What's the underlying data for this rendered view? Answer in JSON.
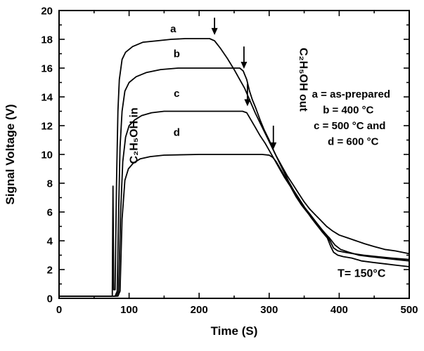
{
  "chart_data": {
    "type": "line",
    "title": "",
    "xlabel": "Time (S)",
    "ylabel": "Signal Voltage (V)",
    "xlim": [
      0,
      500
    ],
    "ylim": [
      0,
      20
    ],
    "x_major_ticks": [
      0,
      100,
      200,
      300,
      400,
      500
    ],
    "x_minor_step": 50,
    "y_major_ticks": [
      0,
      2,
      4,
      6,
      8,
      10,
      12,
      14,
      16,
      18,
      20
    ],
    "y_minor_step": 1,
    "grid": false,
    "legend_position": "inside-right",
    "line_color": "#000000",
    "background_color": "#ffffff",
    "series": [
      {
        "name": "a",
        "description": "as-prepared",
        "points": [
          [
            0,
            0.15
          ],
          [
            76,
            0.15
          ],
          [
            77,
            7.8
          ],
          [
            78,
            0.6
          ],
          [
            80,
            0.6
          ],
          [
            82,
            8
          ],
          [
            84,
            13
          ],
          [
            86,
            15.2
          ],
          [
            90,
            16.6
          ],
          [
            95,
            17.1
          ],
          [
            105,
            17.5
          ],
          [
            120,
            17.8
          ],
          [
            140,
            17.9
          ],
          [
            160,
            18.0
          ],
          [
            180,
            18.05
          ],
          [
            200,
            18.05
          ],
          [
            215,
            18.05
          ],
          [
            222,
            17.9
          ],
          [
            230,
            17.4
          ],
          [
            240,
            16.7
          ],
          [
            250,
            15.9
          ],
          [
            258,
            15.2
          ],
          [
            265,
            14.6
          ],
          [
            272,
            13.8
          ],
          [
            280,
            12.9
          ],
          [
            288,
            12.1
          ],
          [
            295,
            11.4
          ],
          [
            302,
            10.7
          ],
          [
            310,
            9.9
          ],
          [
            318,
            9.2
          ],
          [
            326,
            8.5
          ],
          [
            334,
            7.9
          ],
          [
            342,
            7.3
          ],
          [
            350,
            6.7
          ],
          [
            358,
            6.2
          ],
          [
            366,
            5.8
          ],
          [
            374,
            5.4
          ],
          [
            382,
            5.0
          ],
          [
            390,
            4.7
          ],
          [
            400,
            4.4
          ],
          [
            412,
            4.2
          ],
          [
            424,
            4.0
          ],
          [
            436,
            3.8
          ],
          [
            450,
            3.6
          ],
          [
            465,
            3.4
          ],
          [
            480,
            3.3
          ],
          [
            500,
            3.1
          ]
        ]
      },
      {
        "name": "b",
        "description": "400 °C",
        "points": [
          [
            0,
            0.15
          ],
          [
            80,
            0.15
          ],
          [
            83,
            0.5
          ],
          [
            85,
            6
          ],
          [
            87,
            10.5
          ],
          [
            90,
            13
          ],
          [
            94,
            14.4
          ],
          [
            100,
            15.0
          ],
          [
            110,
            15.4
          ],
          [
            125,
            15.7
          ],
          [
            145,
            15.9
          ],
          [
            170,
            16.0
          ],
          [
            200,
            16.0
          ],
          [
            240,
            16.0
          ],
          [
            258,
            16.0
          ],
          [
            263,
            15.8
          ],
          [
            268,
            15.2
          ],
          [
            272,
            14.4
          ],
          [
            276,
            13.8
          ],
          [
            281,
            13.2
          ],
          [
            287,
            12.4
          ],
          [
            293,
            11.7
          ],
          [
            300,
            11.0
          ],
          [
            307,
            10.2
          ],
          [
            314,
            9.5
          ],
          [
            321,
            8.8
          ],
          [
            328,
            8.1
          ],
          [
            335,
            7.5
          ],
          [
            343,
            6.9
          ],
          [
            351,
            6.3
          ],
          [
            359,
            5.8
          ],
          [
            367,
            5.3
          ],
          [
            375,
            4.8
          ],
          [
            382,
            4.4
          ],
          [
            388,
            3.9
          ],
          [
            392,
            3.5
          ],
          [
            398,
            3.3
          ],
          [
            408,
            3.2
          ],
          [
            420,
            3.1
          ],
          [
            435,
            3.0
          ],
          [
            455,
            2.9
          ],
          [
            475,
            2.8
          ],
          [
            500,
            2.7
          ]
        ]
      },
      {
        "name": "c",
        "description": "500 °C",
        "points": [
          [
            0,
            0.15
          ],
          [
            82,
            0.15
          ],
          [
            85,
            0.5
          ],
          [
            88,
            6
          ],
          [
            91,
            9.5
          ],
          [
            95,
            11.2
          ],
          [
            100,
            12.0
          ],
          [
            108,
            12.4
          ],
          [
            118,
            12.7
          ],
          [
            132,
            12.9
          ],
          [
            150,
            13.0
          ],
          [
            200,
            13.0
          ],
          [
            262,
            13.0
          ],
          [
            268,
            12.9
          ],
          [
            274,
            12.4
          ],
          [
            280,
            11.9
          ],
          [
            287,
            11.3
          ],
          [
            294,
            10.8
          ],
          [
            301,
            10.2
          ],
          [
            308,
            9.6
          ],
          [
            315,
            9.0
          ],
          [
            322,
            8.4
          ],
          [
            330,
            7.8
          ],
          [
            338,
            7.1
          ],
          [
            346,
            6.5
          ],
          [
            354,
            6.0
          ],
          [
            362,
            5.5
          ],
          [
            370,
            5.0
          ],
          [
            378,
            4.6
          ],
          [
            386,
            4.2
          ],
          [
            394,
            3.7
          ],
          [
            402,
            3.4
          ],
          [
            414,
            3.2
          ],
          [
            428,
            3.0
          ],
          [
            444,
            2.9
          ],
          [
            462,
            2.8
          ],
          [
            480,
            2.7
          ],
          [
            500,
            2.6
          ]
        ]
      },
      {
        "name": "d",
        "description": "600 °C",
        "points": [
          [
            0,
            0.15
          ],
          [
            84,
            0.15
          ],
          [
            87,
            0.5
          ],
          [
            90,
            5.5
          ],
          [
            94,
            8.2
          ],
          [
            99,
            9.0
          ],
          [
            106,
            9.4
          ],
          [
            116,
            9.7
          ],
          [
            130,
            9.85
          ],
          [
            150,
            9.95
          ],
          [
            200,
            10.0
          ],
          [
            290,
            10.0
          ],
          [
            300,
            9.95
          ],
          [
            305,
            9.8
          ],
          [
            310,
            9.5
          ],
          [
            316,
            9.0
          ],
          [
            322,
            8.5
          ],
          [
            329,
            8.0
          ],
          [
            336,
            7.4
          ],
          [
            344,
            6.8
          ],
          [
            352,
            6.2
          ],
          [
            360,
            5.6
          ],
          [
            368,
            5.1
          ],
          [
            376,
            4.6
          ],
          [
            383,
            4.2
          ],
          [
            388,
            3.6
          ],
          [
            392,
            3.2
          ],
          [
            398,
            3.0
          ],
          [
            406,
            2.9
          ],
          [
            418,
            2.8
          ],
          [
            432,
            2.6
          ],
          [
            448,
            2.5
          ],
          [
            465,
            2.4
          ],
          [
            482,
            2.3
          ],
          [
            500,
            2.2
          ]
        ]
      }
    ],
    "curve_labels": [
      {
        "text": "a",
        "x": 163,
        "y": 18.5
      },
      {
        "text": "b",
        "x": 168,
        "y": 16.75
      },
      {
        "text": "c",
        "x": 168,
        "y": 14.0
      },
      {
        "text": "d",
        "x": 168,
        "y": 11.3
      }
    ],
    "arrows": [
      {
        "x": 222,
        "from": 19.5,
        "to": 18.3
      },
      {
        "x": 264,
        "from": 17.5,
        "to": 15.95
      },
      {
        "x": 269,
        "from": 14.9,
        "to": 13.35
      },
      {
        "x": 306,
        "from": 12.0,
        "to": 10.35
      }
    ],
    "annotations": [
      {
        "id": "gas-in-label",
        "text": "C₂H₅OH in",
        "x": 112,
        "y": 11.3,
        "rotate": -90,
        "size": 16
      },
      {
        "id": "gas-out-label",
        "text": "C₂H₅OH out",
        "x": 344,
        "y": 15.2,
        "rotate": 90,
        "size": 16
      },
      {
        "id": "temperature-label",
        "text": "T= 150°C",
        "x": 432,
        "y": 1.5,
        "rotate": 0,
        "size": 16
      }
    ],
    "legend_lines": [
      {
        "text": "a = as-prepared",
        "x": 417,
        "y": 13.95
      },
      {
        "text": "b = 400 °C",
        "x": 413,
        "y": 12.85
      },
      {
        "text": "c = 500 °C and",
        "x": 415,
        "y": 11.75
      },
      {
        "text": "d = 600 °C",
        "x": 420,
        "y": 10.65
      }
    ]
  }
}
